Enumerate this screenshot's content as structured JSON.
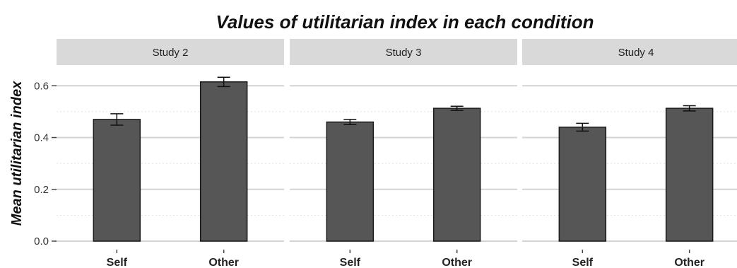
{
  "chart_data": {
    "type": "bar",
    "title": "Values of utilitarian index in each condition",
    "ylabel": "Mean utilitarian index",
    "xlabel": "",
    "ylim": [
      0,
      0.68
    ],
    "yticks": [
      "0.0",
      "0.2",
      "0.4",
      "0.6"
    ],
    "categories": [
      "Self",
      "Other"
    ],
    "panels": [
      {
        "label": "Study 2",
        "values": [
          0.47,
          0.615
        ],
        "errors": [
          0.022,
          0.018
        ]
      },
      {
        "label": "Study 3",
        "values": [
          0.46,
          0.513
        ],
        "errors": [
          0.01,
          0.008
        ]
      },
      {
        "label": "Study 4",
        "values": [
          0.44,
          0.513
        ],
        "errors": [
          0.015,
          0.01
        ]
      }
    ],
    "grid": true,
    "colors": {
      "bar": "#565656",
      "bar_edge": "#1a1a1a",
      "strip_bg": "#d9d9d9",
      "grid_major": "#d4d4d4",
      "grid_minor": "#e0e0e0"
    }
  }
}
